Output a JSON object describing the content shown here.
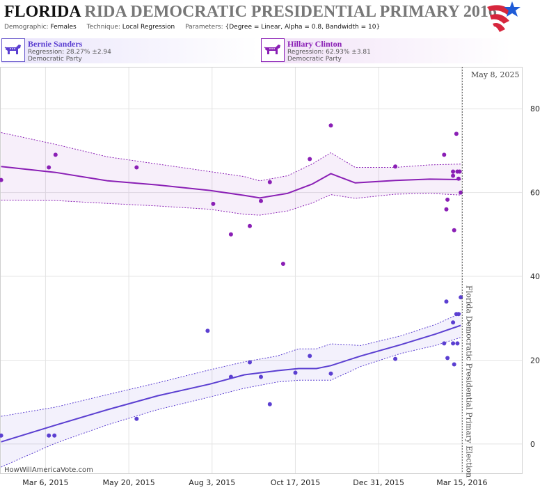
{
  "header": {
    "title_dark": "FLORIDA",
    "title_light": "RIDA DEMOCRATIC PRESIDENTIAL PRIMARY 2016",
    "demographic_label": "Demographic:",
    "demographic_value": "Females",
    "technique_label": "Technique:",
    "technique_value": "Local Regression",
    "parameters_label": "Parameters:",
    "parameters_value": "{Degree = Linear, Alpha = 0.8, Bandwidth = 10}"
  },
  "candidates": [
    {
      "name": "Bernie Sanders",
      "regression": "Regression: 28.27% ±2.94",
      "party": "Democratic Party",
      "color": "#5b3fd1"
    },
    {
      "name": "Hillary Clinton",
      "regression": "Regression: 62.93% ±3.81",
      "party": "Democratic Party",
      "color": "#8a1fb5"
    }
  ],
  "credit": "HowWillAmericaVote.com",
  "chart_data": {
    "type": "scatter",
    "title": "",
    "xlabel": "",
    "ylabel": "",
    "x_ticks": [
      "Mar 6, 2015",
      "May 20, 2015",
      "Aug 3, 2015",
      "Oct 17, 2015",
      "Dec 31, 2015",
      "Mar 15, 2016"
    ],
    "xlim": [
      "2015-01-24",
      "2016-05-08"
    ],
    "y_ticks": [
      0,
      20,
      40,
      60,
      80
    ],
    "ylim": [
      -7,
      90
    ],
    "grid": true,
    "current_date_label": "May 8, 2025",
    "event_label": "Florida Democratic Presidential Primary Election",
    "event_date": "2016-03-15",
    "series": [
      {
        "name": "Hillary Clinton",
        "color": "#8a1fb5",
        "points": [
          [
            "2015-01-25",
            63
          ],
          [
            "2015-03-09",
            66
          ],
          [
            "2015-03-15",
            69
          ],
          [
            "2015-05-27",
            66
          ],
          [
            "2015-08-04",
            57.3
          ],
          [
            "2015-08-20",
            50
          ],
          [
            "2015-09-06",
            52
          ],
          [
            "2015-09-16",
            58
          ],
          [
            "2015-09-24",
            62.5
          ],
          [
            "2015-10-06",
            43
          ],
          [
            "2015-10-30",
            68
          ],
          [
            "2015-11-18",
            76
          ],
          [
            "2016-01-15",
            66.2
          ],
          [
            "2016-02-28",
            69
          ],
          [
            "2016-03-01",
            56
          ],
          [
            "2016-03-02",
            58.3
          ],
          [
            "2016-03-07",
            65
          ],
          [
            "2016-03-07",
            64
          ],
          [
            "2016-03-08",
            51
          ],
          [
            "2016-03-10",
            74
          ],
          [
            "2016-03-11",
            65
          ],
          [
            "2016-03-12",
            63.3
          ],
          [
            "2016-03-13",
            65
          ],
          [
            "2016-03-14",
            60
          ]
        ],
        "trend": [
          [
            "2015-01-25",
            66.2
          ],
          [
            "2015-03-15",
            64.8
          ],
          [
            "2015-05-01",
            62.8
          ],
          [
            "2015-06-15",
            61.8
          ],
          [
            "2015-08-01",
            60.5
          ],
          [
            "2015-09-01",
            59.3
          ],
          [
            "2015-09-15",
            58.7
          ],
          [
            "2015-10-10",
            59.8
          ],
          [
            "2015-11-01",
            62
          ],
          [
            "2015-11-18",
            64.5
          ],
          [
            "2015-12-10",
            62.3
          ],
          [
            "2016-01-15",
            62.9
          ],
          [
            "2016-02-15",
            63.2
          ],
          [
            "2016-03-14",
            63.1
          ]
        ],
        "upper": [
          [
            "2015-01-25",
            74.3
          ],
          [
            "2015-03-15",
            71.5
          ],
          [
            "2015-05-01",
            68.5
          ],
          [
            "2015-06-15",
            66.8
          ],
          [
            "2015-08-01",
            65
          ],
          [
            "2015-09-01",
            63.8
          ],
          [
            "2015-09-15",
            62.8
          ],
          [
            "2015-10-10",
            64
          ],
          [
            "2015-11-01",
            66.8
          ],
          [
            "2015-11-18",
            69.5
          ],
          [
            "2015-12-10",
            66
          ],
          [
            "2016-01-15",
            66
          ],
          [
            "2016-02-15",
            66.6
          ],
          [
            "2016-03-14",
            66.8
          ]
        ],
        "lower": [
          [
            "2015-01-25",
            58.2
          ],
          [
            "2015-03-15",
            58.1
          ],
          [
            "2015-05-01",
            57.4
          ],
          [
            "2015-06-15",
            56.8
          ],
          [
            "2015-08-01",
            56
          ],
          [
            "2015-09-01",
            54.8
          ],
          [
            "2015-09-15",
            54.6
          ],
          [
            "2015-10-10",
            55.6
          ],
          [
            "2015-11-01",
            57.5
          ],
          [
            "2015-11-18",
            59.5
          ],
          [
            "2015-12-10",
            58.6
          ],
          [
            "2016-01-15",
            59.6
          ],
          [
            "2016-02-15",
            59.8
          ],
          [
            "2016-03-14",
            59.4
          ]
        ]
      },
      {
        "name": "Bernie Sanders",
        "color": "#5b3fd1",
        "points": [
          [
            "2015-01-25",
            2
          ],
          [
            "2015-03-09",
            2
          ],
          [
            "2015-03-14",
            2
          ],
          [
            "2015-05-27",
            6
          ],
          [
            "2015-07-30",
            27
          ],
          [
            "2015-08-20",
            16
          ],
          [
            "2015-09-06",
            19.5
          ],
          [
            "2015-09-16",
            16
          ],
          [
            "2015-09-24",
            9.5
          ],
          [
            "2015-10-17",
            17
          ],
          [
            "2015-10-30",
            21
          ],
          [
            "2015-11-18",
            16.8
          ],
          [
            "2016-01-15",
            20.3
          ],
          [
            "2016-02-28",
            24
          ],
          [
            "2016-03-01",
            34
          ],
          [
            "2016-03-02",
            20.5
          ],
          [
            "2016-03-07",
            29
          ],
          [
            "2016-03-07",
            24
          ],
          [
            "2016-03-08",
            19
          ],
          [
            "2016-03-10",
            31
          ],
          [
            "2016-03-11",
            24
          ],
          [
            "2016-03-12",
            31
          ],
          [
            "2016-03-14",
            35
          ]
        ],
        "trend": [
          [
            "2015-01-25",
            0.5
          ],
          [
            "2015-03-15",
            4.5
          ],
          [
            "2015-05-01",
            8.2
          ],
          [
            "2015-06-15",
            11.5
          ],
          [
            "2015-08-01",
            14.3
          ],
          [
            "2015-09-01",
            16.5
          ],
          [
            "2015-10-01",
            17.5
          ],
          [
            "2015-10-20",
            18
          ],
          [
            "2015-11-05",
            18
          ],
          [
            "2015-11-18",
            18.7
          ],
          [
            "2015-12-15",
            21
          ],
          [
            "2016-01-20",
            23.7
          ],
          [
            "2016-02-20",
            26.2
          ],
          [
            "2016-03-14",
            28.3
          ]
        ],
        "upper": [
          [
            "2015-01-25",
            6.6
          ],
          [
            "2015-03-15",
            8.8
          ],
          [
            "2015-05-01",
            11.8
          ],
          [
            "2015-06-15",
            14.6
          ],
          [
            "2015-08-01",
            17.7
          ],
          [
            "2015-09-01",
            19.6
          ],
          [
            "2015-10-01",
            21
          ],
          [
            "2015-10-20",
            22.7
          ],
          [
            "2015-11-05",
            22.7
          ],
          [
            "2015-11-18",
            23.9
          ],
          [
            "2015-12-15",
            23.5
          ],
          [
            "2016-01-20",
            25.8
          ],
          [
            "2016-02-20",
            28.5
          ],
          [
            "2016-03-14",
            31.2
          ]
        ],
        "lower": [
          [
            "2015-01-25",
            -5.5
          ],
          [
            "2015-03-15",
            0.2
          ],
          [
            "2015-05-01",
            4.6
          ],
          [
            "2015-06-15",
            8.2
          ],
          [
            "2015-08-01",
            11.2
          ],
          [
            "2015-09-01",
            13.3
          ],
          [
            "2015-10-01",
            14.8
          ],
          [
            "2015-10-20",
            15.2
          ],
          [
            "2015-11-05",
            15.2
          ],
          [
            "2015-11-18",
            15.2
          ],
          [
            "2015-12-15",
            18.5
          ],
          [
            "2016-01-20",
            21.6
          ],
          [
            "2016-02-20",
            23.5
          ],
          [
            "2016-03-14",
            25.4
          ]
        ]
      }
    ]
  }
}
